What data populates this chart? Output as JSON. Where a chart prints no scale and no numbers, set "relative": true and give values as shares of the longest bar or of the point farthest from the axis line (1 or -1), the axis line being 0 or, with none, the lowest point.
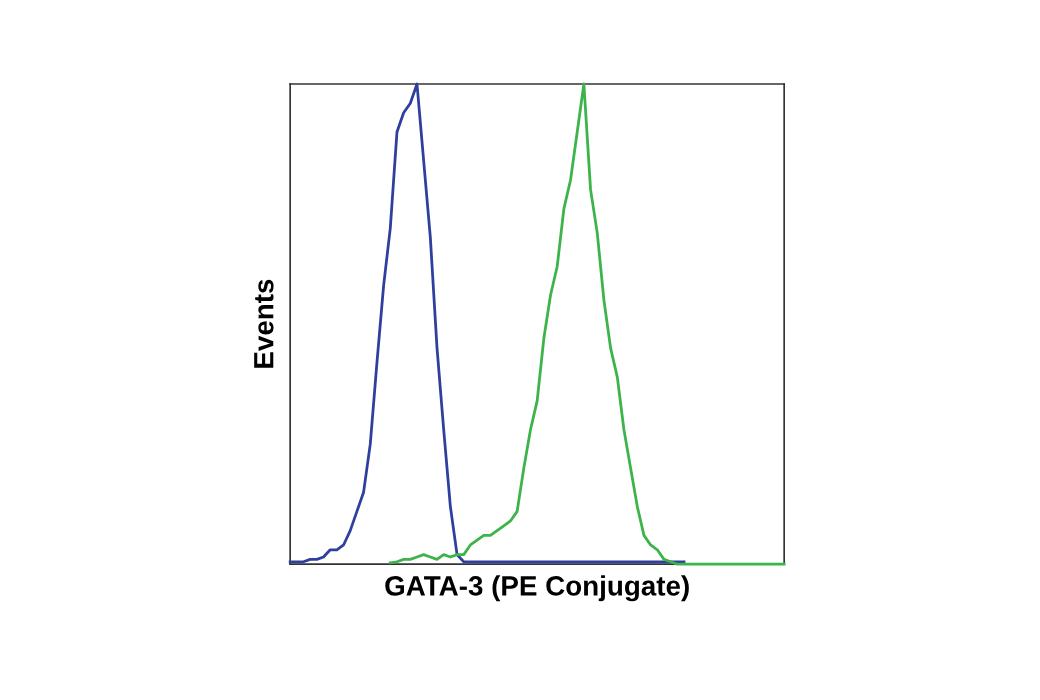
{
  "chart_data": {
    "type": "line",
    "xlabel": "GATA-3 (PE Conjugate)",
    "ylabel": "Events",
    "relative": true,
    "tick_labels": false,
    "grid": false,
    "legend": false,
    "marker": "none",
    "line_style": "solid",
    "categories": [
      null,
      null,
      null,
      null,
      null,
      null,
      null,
      null,
      null,
      null,
      null,
      null,
      null,
      null,
      null,
      null,
      null,
      null,
      null,
      null,
      null,
      null,
      null,
      null,
      null,
      null,
      null,
      null,
      null,
      null,
      null,
      null,
      null,
      null,
      null,
      null,
      null,
      null,
      null,
      null,
      null,
      null,
      null,
      null,
      null,
      null,
      null,
      null,
      null,
      null,
      null,
      null,
      null,
      null,
      null,
      null,
      null,
      null,
      null,
      null,
      null,
      null,
      null,
      null,
      null,
      null,
      null,
      null,
      null,
      null,
      null,
      null,
      null,
      null,
      null
    ],
    "series": [
      {
        "color": "#2e3f9e",
        "values": [
          0.005,
          0.005,
          0.005,
          0.01,
          0.01,
          0.015,
          0.03,
          0.03,
          0.04,
          0.07,
          0.11,
          0.15,
          0.25,
          0.42,
          0.58,
          0.7,
          0.9,
          0.94,
          0.96,
          1.0,
          0.84,
          0.68,
          0.45,
          0.28,
          0.12,
          0.02,
          0.005,
          0.005,
          0.005,
          0.005,
          0.005,
          0.005,
          0.005,
          0.005,
          0.005,
          0.005,
          0.005,
          0.005,
          0.005,
          0.005,
          0.005,
          0.005,
          0.005,
          0.005,
          0.005,
          0.005,
          0.005,
          0.005,
          0.005,
          0.005,
          0.005,
          0.005,
          0.005,
          0.005,
          0.005,
          0.005,
          0.005,
          0.005,
          0.005,
          0.005,
          null,
          null,
          null,
          null,
          null,
          null,
          null,
          null,
          null,
          null,
          null,
          null,
          null,
          null,
          null
        ]
      },
      {
        "color": "#3cb44a",
        "values": [
          null,
          null,
          null,
          null,
          null,
          null,
          null,
          null,
          null,
          null,
          null,
          null,
          null,
          null,
          null,
          0.003,
          0.005,
          0.01,
          0.01,
          0.015,
          0.02,
          0.015,
          0.01,
          0.02,
          0.015,
          0.02,
          0.02,
          0.04,
          0.05,
          0.06,
          0.06,
          0.07,
          0.08,
          0.09,
          0.11,
          0.2,
          0.28,
          0.34,
          0.47,
          0.56,
          0.62,
          0.74,
          0.8,
          0.9,
          1.0,
          0.78,
          0.69,
          0.55,
          0.45,
          0.39,
          0.28,
          0.2,
          0.12,
          0.06,
          0.04,
          0.03,
          0.01,
          0.005,
          0,
          0,
          0,
          0,
          0,
          0,
          0,
          0,
          0,
          0,
          0,
          0,
          0,
          0,
          0,
          0,
          0
        ]
      }
    ]
  }
}
